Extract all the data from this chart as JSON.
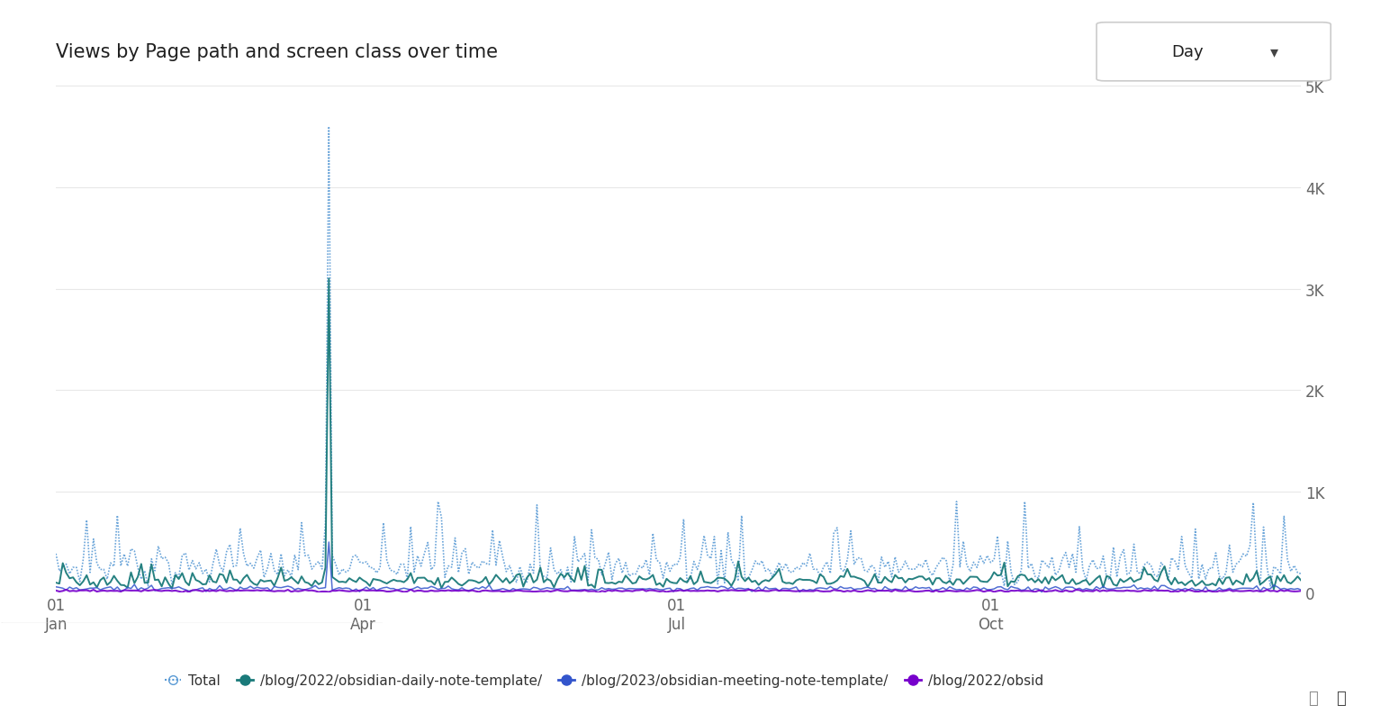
{
  "title": "Views by Page path and screen class over time",
  "day_button": "Day",
  "ylim": [
    0,
    5000
  ],
  "yticks": [
    0,
    1000,
    2000,
    3000,
    4000,
    5000
  ],
  "ytick_labels": [
    "0",
    "1K",
    "2K",
    "3K",
    "4K",
    "5K"
  ],
  "xtick_positions": [
    0,
    90,
    182,
    274
  ],
  "n_days": 366,
  "spike_day": 80,
  "spike_total": 4600,
  "spike_page1": 3100,
  "spike_page2": 500,
  "baseline_total_mean": 250,
  "baseline_total_std": 80,
  "baseline_page1_mean": 120,
  "baseline_page1_std": 35,
  "baseline_page2_mean": 40,
  "baseline_page2_std": 12,
  "baseline_page3_mean": 18,
  "baseline_page3_std": 5,
  "color_total": "#5b9bd5",
  "color_page1": "#1a7a7a",
  "color_page2": "#3355cc",
  "color_page3": "#7700cc",
  "legend_labels": [
    "Total",
    "/blog/2022/obsidian-daily-note-template/",
    "/blog/2023/obsidian-meeting-note-template/",
    "/blog/2022/obsid"
  ],
  "background_color": "#ffffff",
  "grid_color": "#e8e8e8",
  "title_fontsize": 15,
  "tick_fontsize": 12,
  "legend_fontsize": 11
}
